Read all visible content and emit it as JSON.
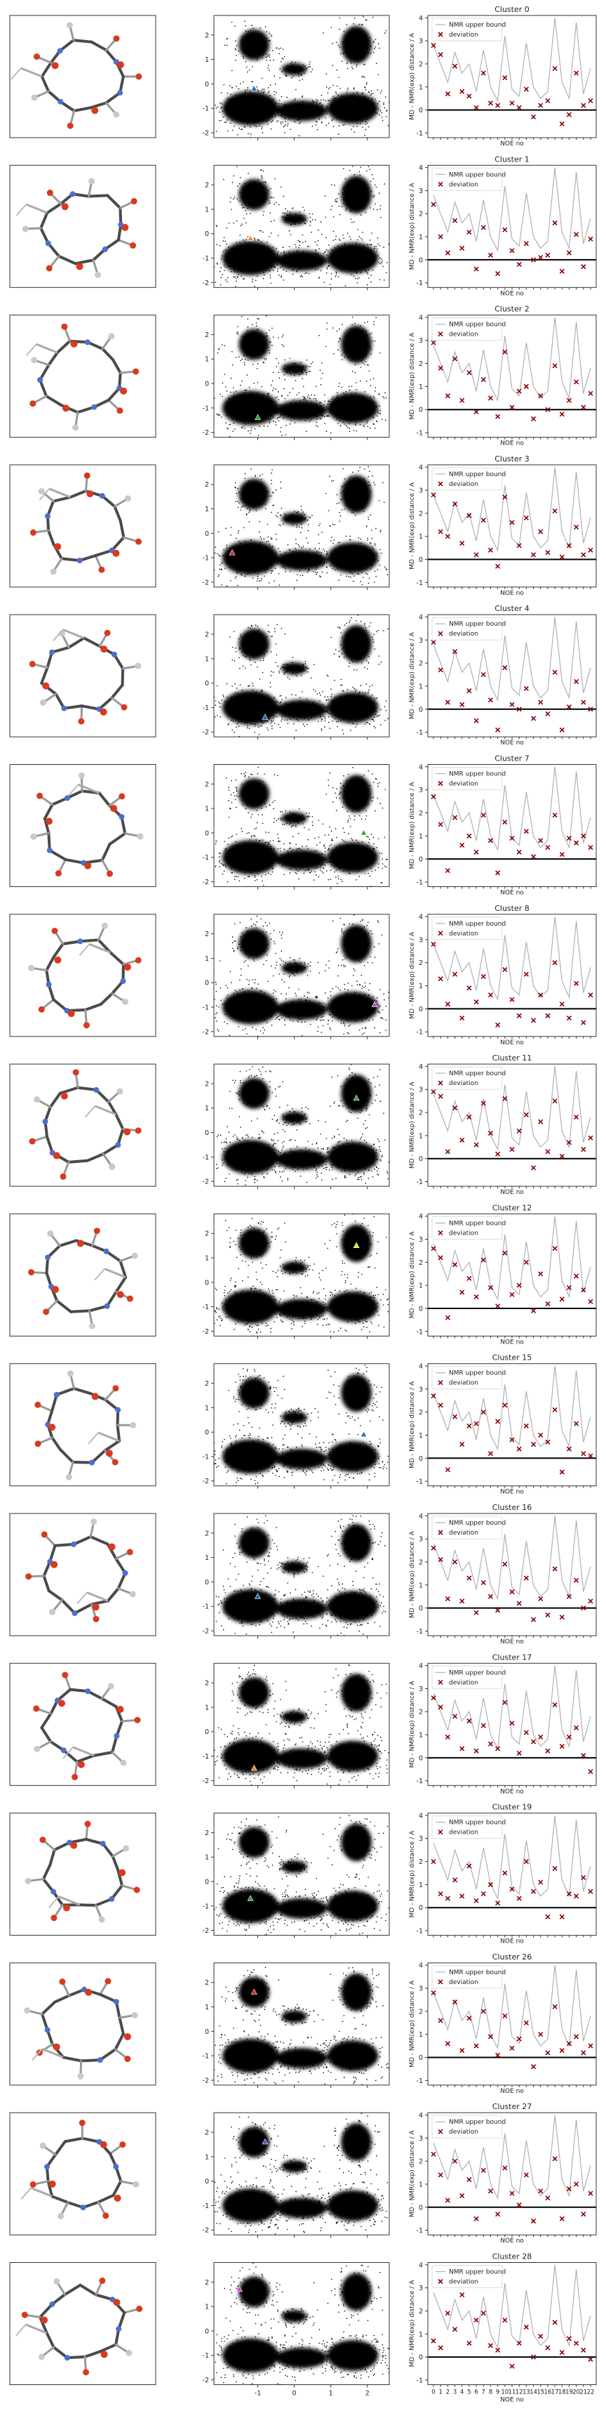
{
  "chart_data": {
    "type": "scatter",
    "panel_layout": "16 rows x 3 columns: molecule render, 2D scatter density map with marker, NOE deviation plot",
    "shared": {
      "density_map": {
        "x_ticks": [
          -1,
          0,
          1,
          2
        ],
        "y_ticks": [
          -2,
          -1,
          0,
          1,
          2
        ],
        "xlim": [
          -2.2,
          2.6
        ],
        "ylim": [
          -2.2,
          2.8
        ],
        "marker": "triangle"
      },
      "noe_plot": {
        "ylabel": "MD - NMR(exp) distance / A",
        "xlabel": "NOE no",
        "y_ticks": [
          -1,
          0,
          1,
          2,
          3,
          4
        ],
        "ylim": [
          -1.2,
          4.1
        ],
        "n_noe": 23,
        "x_ticks": [
          "0",
          "1",
          "2",
          "3",
          "4",
          "5",
          "6",
          "7",
          "8",
          "9",
          "10",
          "11",
          "12",
          "13",
          "14",
          "15",
          "16",
          "17",
          "18",
          "19",
          "20",
          "21",
          "22"
        ],
        "legend": [
          "NMR upper bound",
          "deviation"
        ],
        "legend_location": "upper-left",
        "upper_bound_series": [
          2.8,
          2.0,
          1.2,
          2.5,
          1.6,
          2.0,
          0.8,
          2.6,
          1.0,
          0.4,
          3.2,
          0.9,
          0.6,
          2.9,
          1.0,
          0.5,
          0.8,
          4.0,
          1.2,
          0.5,
          3.8,
          0.7,
          1.8
        ]
      }
    },
    "clusters": [
      {
        "title": "Cluster 0",
        "marker_color": "#1f5fd0",
        "marker_xy": [
          -1.1,
          -0.2
        ],
        "deviations": [
          2.8,
          2.4,
          0.7,
          1.9,
          0.8,
          0.6,
          0.1,
          1.6,
          0.3,
          0.2,
          1.4,
          0.3,
          0.1,
          0.9,
          -0.3,
          0.2,
          0.4,
          1.8,
          -0.6,
          -0.2,
          1.6,
          0.2,
          0.4
        ]
      },
      {
        "title": "Cluster 1",
        "marker_color": "#ff7f0e",
        "marker_xy": [
          -1.2,
          -0.2
        ],
        "deviations": [
          2.4,
          1.0,
          0.3,
          1.7,
          0.5,
          1.2,
          -0.4,
          1.4,
          0.2,
          -0.6,
          1.3,
          0.4,
          -0.2,
          0.7,
          0.0,
          0.1,
          0.2,
          1.6,
          -0.5,
          0.3,
          1.1,
          -0.3,
          0.9
        ]
      },
      {
        "title": "Cluster 2",
        "marker_color": "#2ca02c",
        "marker_xy": [
          -1.0,
          -1.4
        ],
        "deviations": [
          2.9,
          1.8,
          0.6,
          2.2,
          0.4,
          1.6,
          -0.1,
          1.3,
          0.5,
          -0.3,
          2.5,
          0.1,
          0.8,
          1.0,
          -0.4,
          0.6,
          0.0,
          1.9,
          -0.2,
          0.4,
          1.2,
          0.1,
          0.7
        ]
      },
      {
        "title": "Cluster 3",
        "marker_color": "#d62728",
        "marker_xy": [
          -1.7,
          -0.8
        ],
        "deviations": [
          2.8,
          1.2,
          1.0,
          2.4,
          0.7,
          1.9,
          0.2,
          1.7,
          0.4,
          -0.3,
          2.7,
          1.6,
          0.6,
          1.8,
          0.2,
          1.2,
          0.3,
          2.1,
          0.1,
          0.6,
          1.4,
          0.2,
          0.4
        ]
      },
      {
        "title": "Cluster 4",
        "marker_color": "#1f5fd0",
        "marker_xy": [
          -0.8,
          -1.4
        ],
        "deviations": [
          2.9,
          1.7,
          0.3,
          2.5,
          0.2,
          0.8,
          -0.5,
          1.5,
          0.4,
          -0.9,
          1.8,
          0.2,
          0.0,
          0.9,
          -0.4,
          0.3,
          -0.2,
          1.6,
          -0.9,
          0.1,
          1.2,
          0.3,
          0.0
        ]
      },
      {
        "title": "Cluster 7",
        "marker_color": "#2ca02c",
        "marker_xy": [
          1.9,
          0.0
        ],
        "deviations": [
          2.7,
          1.5,
          -0.5,
          1.8,
          0.6,
          1.0,
          0.3,
          1.9,
          0.8,
          -0.6,
          1.6,
          0.9,
          0.3,
          1.2,
          0.1,
          0.8,
          0.5,
          1.9,
          0.2,
          0.9,
          0.7,
          1.0,
          0.5
        ]
      },
      {
        "title": "Cluster 8",
        "marker_color": "#d63ad6",
        "marker_xy": [
          2.2,
          -0.9
        ],
        "deviations": [
          2.8,
          1.3,
          0.2,
          1.5,
          -0.4,
          0.9,
          0.3,
          1.4,
          0.6,
          -0.7,
          1.7,
          0.4,
          -0.3,
          1.5,
          -0.5,
          0.6,
          -0.3,
          2.0,
          0.2,
          -0.4,
          1.1,
          -0.6,
          0.6
        ]
      },
      {
        "title": "Cluster 11",
        "marker_color": "#2ca02c",
        "marker_xy": [
          1.7,
          1.4
        ],
        "deviations": [
          2.9,
          2.7,
          0.3,
          2.2,
          0.8,
          1.8,
          0.6,
          2.4,
          1.1,
          0.2,
          2.6,
          0.4,
          1.2,
          1.9,
          -0.4,
          1.6,
          0.3,
          2.5,
          0.1,
          0.7,
          1.8,
          0.4,
          0.9
        ]
      },
      {
        "title": "Cluster 12",
        "marker_color": "#e8e020",
        "marker_xy": [
          1.7,
          1.5
        ],
        "deviations": [
          2.6,
          2.2,
          -0.4,
          1.9,
          0.7,
          1.3,
          0.5,
          2.1,
          0.9,
          0.1,
          2.4,
          0.6,
          1.0,
          2.0,
          -0.1,
          1.5,
          0.2,
          2.6,
          0.4,
          0.9,
          1.4,
          0.8,
          0.3
        ]
      },
      {
        "title": "Cluster 15",
        "marker_color": "#1f5fd0",
        "marker_xy": [
          1.9,
          -0.1
        ],
        "deviations": [
          2.7,
          2.3,
          -0.5,
          1.8,
          0.6,
          1.4,
          1.5,
          2.0,
          0.2,
          1.6,
          2.3,
          0.8,
          0.4,
          1.4,
          0.6,
          1.0,
          0.7,
          2.1,
          -0.6,
          0.4,
          1.5,
          0.2,
          0.1
        ]
      },
      {
        "title": "Cluster 16",
        "marker_color": "#1f5fd0",
        "marker_xy": [
          -1.0,
          -0.6
        ],
        "deviations": [
          2.6,
          2.1,
          0.4,
          2.0,
          0.3,
          1.3,
          -0.2,
          1.1,
          0.5,
          -0.1,
          1.9,
          0.7,
          0.2,
          1.3,
          -0.5,
          0.4,
          -0.3,
          1.7,
          -0.4,
          0.5,
          1.2,
          0.0,
          0.3
        ]
      },
      {
        "title": "Cluster 17",
        "marker_color": "#ff7f0e",
        "marker_xy": [
          -1.1,
          -1.5
        ],
        "deviations": [
          2.6,
          2.2,
          0.9,
          1.8,
          0.4,
          1.6,
          0.3,
          1.4,
          0.6,
          0.4,
          2.4,
          1.5,
          0.2,
          1.1,
          0.7,
          0.9,
          0.3,
          2.3,
          0.5,
          0.9,
          1.3,
          0.1,
          -0.6
        ]
      },
      {
        "title": "Cluster 19",
        "marker_color": "#2ca02c",
        "marker_xy": [
          -1.2,
          -0.7
        ],
        "deviations": [
          2.0,
          0.6,
          0.4,
          1.2,
          0.5,
          1.8,
          0.3,
          0.6,
          1.0,
          0.2,
          1.5,
          0.8,
          0.4,
          2.0,
          0.7,
          1.1,
          -0.4,
          1.7,
          -0.4,
          0.6,
          0.5,
          1.3,
          0.7
        ]
      },
      {
        "title": "Cluster 26",
        "marker_color": "#d62728",
        "marker_xy": [
          -1.1,
          1.6
        ],
        "deviations": [
          2.8,
          1.6,
          0.6,
          2.4,
          0.3,
          1.7,
          0.5,
          2.0,
          0.9,
          0.1,
          1.8,
          0.4,
          0.8,
          1.5,
          -0.4,
          1.0,
          0.2,
          2.2,
          0.3,
          0.6,
          0.9,
          0.2,
          0.5
        ]
      },
      {
        "title": "Cluster 27",
        "marker_color": "#6a3de0",
        "marker_xy": [
          -0.8,
          1.6
        ],
        "deviations": [
          2.3,
          1.4,
          0.3,
          2.0,
          0.5,
          1.2,
          -0.5,
          1.6,
          0.7,
          -0.3,
          1.7,
          0.6,
          0.1,
          1.4,
          -0.6,
          0.7,
          0.4,
          2.1,
          -0.5,
          0.8,
          1.0,
          -0.3,
          0.6
        ]
      },
      {
        "title": "Cluster 28",
        "marker_color": "#d63ad6",
        "marker_xy": [
          -1.5,
          1.7
        ],
        "deviations": [
          0.7,
          0.4,
          1.9,
          1.2,
          2.7,
          0.6,
          1.6,
          1.9,
          0.5,
          0.3,
          1.6,
          -0.4,
          0.6,
          1.3,
          0.0,
          0.9,
          0.4,
          1.5,
          0.2,
          0.8,
          0.6,
          0.3,
          -0.1
        ]
      }
    ]
  }
}
